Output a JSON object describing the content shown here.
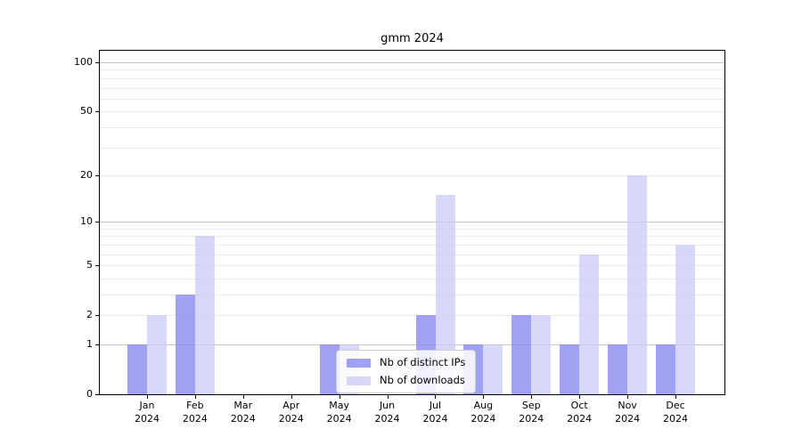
{
  "chart_data": {
    "type": "bar",
    "title": "gmm 2024",
    "categories": [
      "Jan",
      "Feb",
      "Mar",
      "Apr",
      "May",
      "Jun",
      "Jul",
      "Aug",
      "Sep",
      "Oct",
      "Nov",
      "Dec"
    ],
    "category_year": "2024",
    "series": [
      {
        "name": "Nb of distinct IPs",
        "color": "rgba(130,130,240,0.75)",
        "values": [
          1,
          3,
          0,
          0,
          1,
          0,
          2,
          1,
          2,
          1,
          1,
          1
        ]
      },
      {
        "name": "Nb of downloads",
        "color": "rgba(201,201,246,0.75)",
        "values": [
          2,
          8,
          0,
          0,
          1,
          0,
          15,
          1,
          2,
          6,
          20,
          7
        ]
      }
    ],
    "yscale": "log1p",
    "yticks": [
      0,
      1,
      2,
      5,
      10,
      20,
      50,
      100
    ],
    "ylim": [
      0,
      118
    ],
    "xlabel": "",
    "ylabel": "",
    "grid": "on",
    "legend_position": "lower-center-inside",
    "colors": {
      "major_gridline": "#c6c6c6",
      "minor_gridline": "#ebebeb",
      "axis": "#000000",
      "background": "#ffffff"
    }
  }
}
